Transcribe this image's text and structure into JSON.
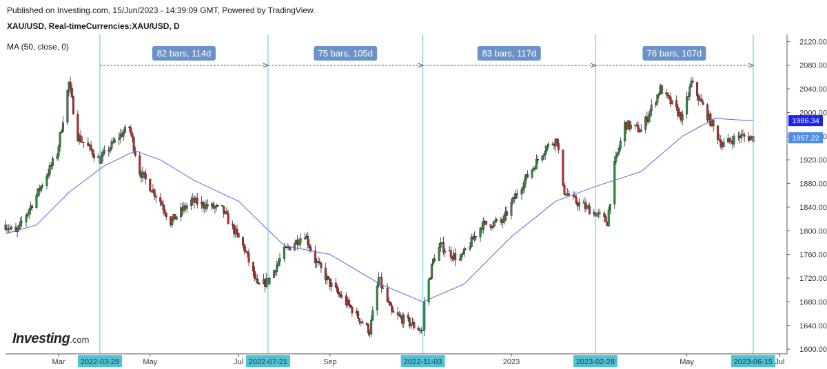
{
  "header": {
    "published": "Published on Investing.com, 15/Jun/2023 - 14:39:09 GMT, Powered by TradingView.",
    "symbol": "XAU/USD, Real-timeCurrencies:XAU/USD, D",
    "indicator": "MA (50, close, 0)"
  },
  "logo": {
    "main": "Investing",
    "suffix": ".com"
  },
  "colors": {
    "up": "#2e8b3e",
    "down": "#c62828",
    "ma": "#5b64e8",
    "ruler": "#4fc3d6",
    "measure_tag": "#6b93c9",
    "price_tag": "#1a23e8",
    "last_tag": "#4f8be8"
  },
  "chart_data": {
    "type": "candlestick",
    "title": "XAU/USD, Real-timeCurrencies:XAU/USD, D",
    "xlabel": "",
    "ylabel": "",
    "ylim": [
      1592,
      2132
    ],
    "y_ticks": [
      "2120.00",
      "2080.00",
      "2040.00",
      "2000.00",
      "1960.00",
      "1920.00",
      "1880.00",
      "1840.00",
      "1800.00",
      "1760.00",
      "1720.00",
      "1680.00",
      "1640.00",
      "1600.00"
    ],
    "x_ticks": [
      {
        "label": "Mar",
        "date": "2022-03-01"
      },
      {
        "label": "May",
        "date": "2022-05-02"
      },
      {
        "label": "Jul",
        "date": "2022-07-01"
      },
      {
        "label": "Sep",
        "date": "2022-09-01"
      },
      {
        "label": "2023",
        "date": "2023-01-02"
      },
      {
        "label": "May",
        "date": "2023-05-01"
      },
      {
        "label": "Jul",
        "date": "2023-07-03"
      }
    ],
    "date_range": [
      "2022-01-24",
      "2023-07-07"
    ],
    "price_path": [
      [
        "2022-01-24",
        1810
      ],
      [
        "2022-01-31",
        1795
      ],
      [
        "2022-02-14",
        1860
      ],
      [
        "2022-02-28",
        1930
      ],
      [
        "2022-03-08",
        2050
      ],
      [
        "2022-03-14",
        1960
      ],
      [
        "2022-03-29",
        1920
      ],
      [
        "2022-04-11",
        1960
      ],
      [
        "2022-04-18",
        1975
      ],
      [
        "2022-04-25",
        1900
      ],
      [
        "2022-05-09",
        1850
      ],
      [
        "2022-05-16",
        1815
      ],
      [
        "2022-05-30",
        1850
      ],
      [
        "2022-06-13",
        1840
      ],
      [
        "2022-06-20",
        1835
      ],
      [
        "2022-07-05",
        1770
      ],
      [
        "2022-07-14",
        1705
      ],
      [
        "2022-07-21",
        1715
      ],
      [
        "2022-08-01",
        1765
      ],
      [
        "2022-08-15",
        1795
      ],
      [
        "2022-08-22",
        1750
      ],
      [
        "2022-09-01",
        1710
      ],
      [
        "2022-09-15",
        1670
      ],
      [
        "2022-09-28",
        1630
      ],
      [
        "2022-10-04",
        1720
      ],
      [
        "2022-10-13",
        1660
      ],
      [
        "2022-10-21",
        1650
      ],
      [
        "2022-11-03",
        1630
      ],
      [
        "2022-11-04",
        1680
      ],
      [
        "2022-11-10",
        1750
      ],
      [
        "2022-11-15",
        1775
      ],
      [
        "2022-11-28",
        1750
      ],
      [
        "2022-12-13",
        1810
      ],
      [
        "2022-12-27",
        1815
      ],
      [
        "2023-01-06",
        1865
      ],
      [
        "2023-01-25",
        1940
      ],
      [
        "2023-02-02",
        1955
      ],
      [
        "2023-02-06",
        1870
      ],
      [
        "2023-02-14",
        1850
      ],
      [
        "2023-02-28",
        1830
      ],
      [
        "2023-03-08",
        1815
      ],
      [
        "2023-03-13",
        1910
      ],
      [
        "2023-03-20",
        1980
      ],
      [
        "2023-03-31",
        1970
      ],
      [
        "2023-04-13",
        2040
      ],
      [
        "2023-04-28",
        1990
      ],
      [
        "2023-05-04",
        2050
      ],
      [
        "2023-05-12",
        2010
      ],
      [
        "2023-05-25",
        1945
      ],
      [
        "2023-06-05",
        1960
      ],
      [
        "2023-06-15",
        1957
      ]
    ],
    "ma_path": [
      [
        "2022-01-24",
        1795
      ],
      [
        "2022-02-14",
        1810
      ],
      [
        "2022-03-08",
        1865
      ],
      [
        "2022-04-01",
        1910
      ],
      [
        "2022-04-22",
        1935
      ],
      [
        "2022-05-09",
        1920
      ],
      [
        "2022-06-01",
        1885
      ],
      [
        "2022-07-01",
        1850
      ],
      [
        "2022-08-01",
        1775
      ],
      [
        "2022-09-01",
        1760
      ],
      [
        "2022-10-05",
        1710
      ],
      [
        "2022-11-03",
        1680
      ],
      [
        "2022-12-01",
        1710
      ],
      [
        "2023-01-02",
        1790
      ],
      [
        "2023-02-01",
        1850
      ],
      [
        "2023-02-28",
        1875
      ],
      [
        "2023-03-31",
        1900
      ],
      [
        "2023-04-28",
        1960
      ],
      [
        "2023-05-20",
        1990
      ],
      [
        "2023-06-15",
        1986
      ]
    ],
    "ma_last": "1986.34",
    "last_price": "1957.22",
    "measurements": [
      {
        "start": "2022-03-29",
        "end": "2022-07-21",
        "label": "82 bars, 114d"
      },
      {
        "start": "2022-07-21",
        "end": "2022-11-03",
        "label": "75 bars, 105d"
      },
      {
        "start": "2022-11-03",
        "end": "2023-02-28",
        "label": "83 bars, 117d"
      },
      {
        "start": "2023-02-28",
        "end": "2023-06-15",
        "label": "76 bars, 107d"
      }
    ],
    "marked_dates": [
      "2022-03-29",
      "2022-07-21",
      "2022-11-03",
      "2023-02-28",
      "2023-06-15"
    ],
    "grid": false
  }
}
